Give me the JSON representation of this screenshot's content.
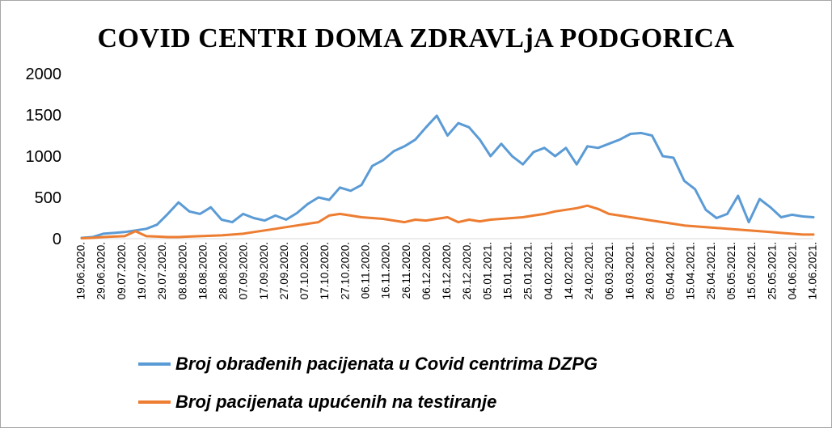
{
  "chart_data": {
    "type": "line",
    "title": "COVID  CENTRI  DOMA ZDRAVLjA  PODGORICA",
    "xlabel": "",
    "ylabel": "",
    "ylim": [
      0,
      2000
    ],
    "yticks": [
      "2000",
      "1500",
      "1000",
      "500",
      "0"
    ],
    "grid": false,
    "legend_position": "bottom",
    "x_ticks": [
      "19.06.2020.",
      "29.06.2020.",
      "09.07.2020.",
      "19.07.2020.",
      "29.07.2020.",
      "08.08.2020.",
      "18.08.2020.",
      "28.08.2020.",
      "07.09.2020.",
      "17.09.2020.",
      "27.09.2020.",
      "07.10.2020.",
      "17.10.2020.",
      "27.10.2020.",
      "06.11.2020.",
      "16.11.2020.",
      "26.11.2020.",
      "06.12.2020.",
      "16.12.2020.",
      "26.12.2020.",
      "05.01.2021.",
      "15.01.2021.",
      "25.01.2021.",
      "04.02.2021.",
      "14.02.2021.",
      "24.02.2021.",
      "06.03.2021.",
      "16.03.2021.",
      "26.03.2021.",
      "05.04.2021.",
      "15.04.2021.",
      "25.04.2021.",
      "05.05.2021.",
      "15.05.2021.",
      "25.05.2021.",
      "04.06.2021.",
      "14.06.2021."
    ],
    "series": [
      {
        "name": "Broj obrađenih pacijenata u Covid centrima DZPG",
        "color": "#5b9bd5",
        "values": [
          10,
          20,
          60,
          70,
          80,
          100,
          120,
          170,
          300,
          440,
          330,
          300,
          380,
          230,
          200,
          300,
          250,
          220,
          280,
          230,
          310,
          420,
          500,
          470,
          620,
          580,
          650,
          880,
          950,
          1060,
          1120,
          1200,
          1350,
          1490,
          1250,
          1400,
          1350,
          1200,
          1000,
          1150,
          1000,
          900,
          1050,
          1100,
          1000,
          1100,
          900,
          1120,
          1100,
          1150,
          1200,
          1270,
          1280,
          1250,
          1000,
          980,
          700,
          600,
          350,
          250,
          300,
          520,
          200,
          480,
          380,
          260,
          290,
          270,
          260
        ]
      },
      {
        "name": "Broj pacijenata upućenih na testiranje",
        "color": "#ed7d31",
        "values": [
          5,
          10,
          20,
          25,
          30,
          90,
          30,
          25,
          20,
          20,
          25,
          30,
          35,
          40,
          50,
          60,
          80,
          100,
          120,
          140,
          160,
          180,
          200,
          280,
          300,
          280,
          260,
          250,
          240,
          220,
          200,
          230,
          220,
          240,
          260,
          200,
          230,
          210,
          230,
          240,
          250,
          260,
          280,
          300,
          330,
          350,
          370,
          400,
          360,
          300,
          280,
          260,
          240,
          220,
          200,
          180,
          160,
          150,
          140,
          130,
          120,
          110,
          100,
          90,
          80,
          70,
          60,
          50,
          50
        ]
      }
    ]
  }
}
